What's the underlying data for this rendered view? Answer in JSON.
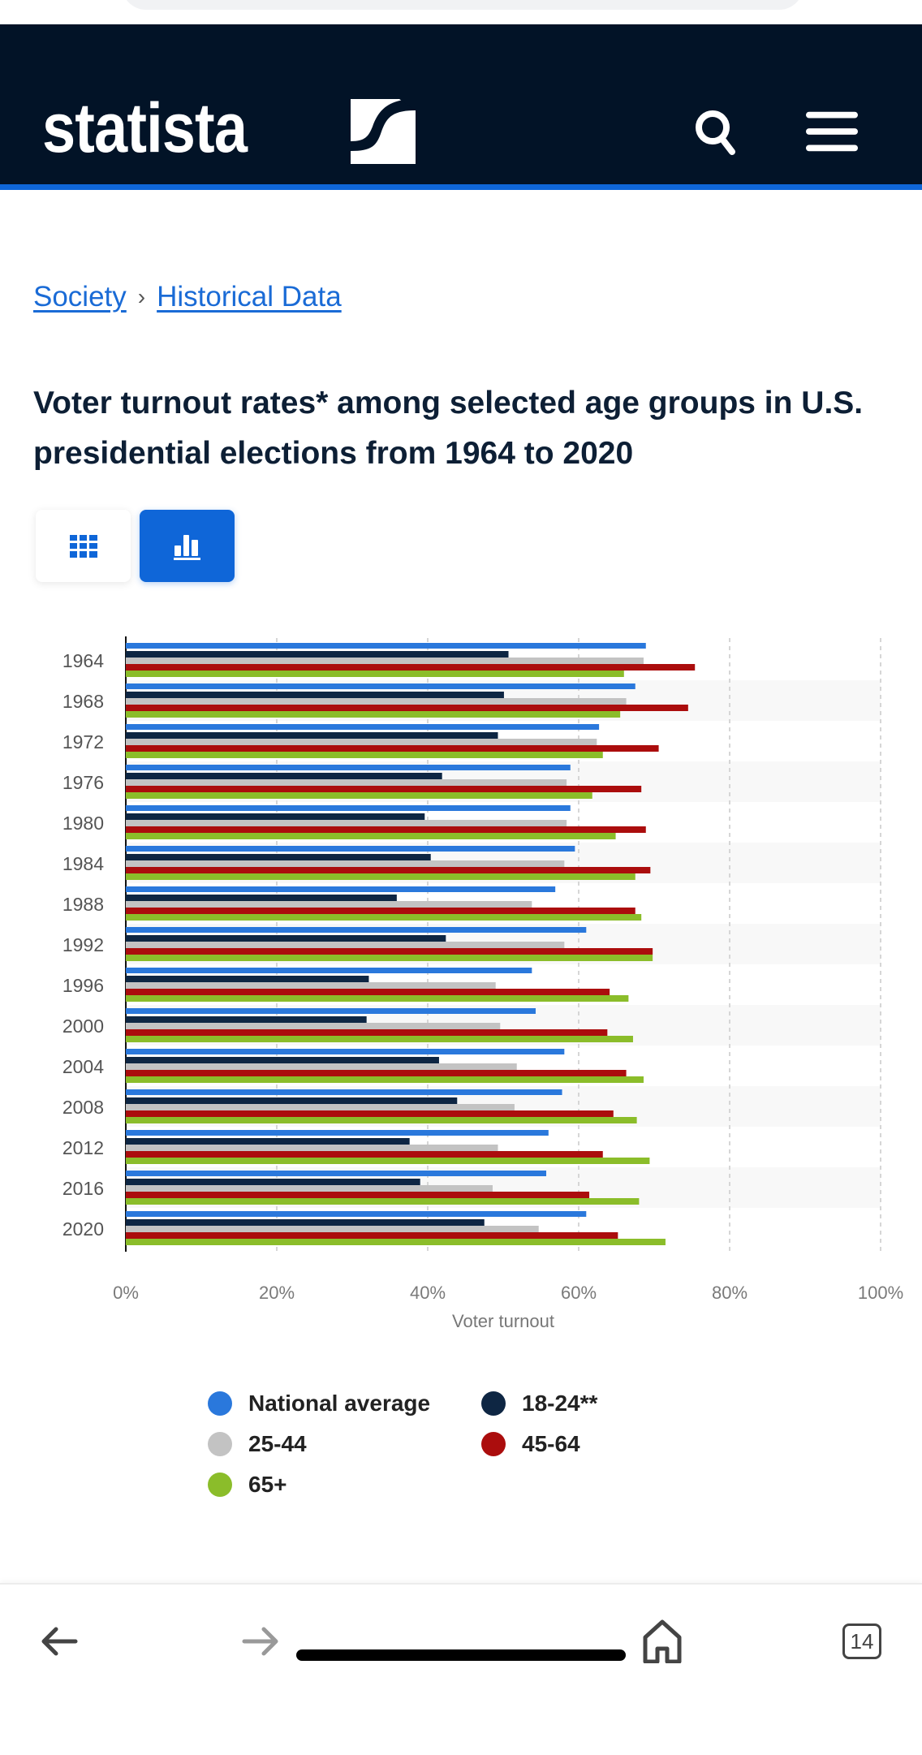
{
  "header": {
    "logo_text": "statista",
    "search_icon": "search-icon",
    "menu_icon": "hamburger-menu-icon",
    "background": "#021327",
    "accent": "#0f66d8"
  },
  "breadcrumb": {
    "items": [
      "Society",
      "Historical Data"
    ],
    "separator": "›"
  },
  "title": "Voter turnout rates* among selected age groups in U.S. presidential elections from 1964 to 2020",
  "view_toggle": {
    "table_icon": "table-grid-icon",
    "chart_icon": "bar-chart-icon",
    "active": "chart"
  },
  "chart_data": {
    "type": "bar",
    "orientation": "horizontal",
    "categories": [
      "1964",
      "1968",
      "1972",
      "1976",
      "1980",
      "1984",
      "1988",
      "1992",
      "1996",
      "2000",
      "2004",
      "2008",
      "2012",
      "2016",
      "2020"
    ],
    "series": [
      {
        "name": "National average",
        "color": "#2a78dc",
        "values": [
          68.9,
          67.5,
          62.7,
          58.9,
          58.9,
          59.5,
          56.9,
          61.0,
          53.8,
          54.3,
          58.1,
          57.8,
          56.0,
          55.7,
          61.0
        ]
      },
      {
        "name": "18-24**",
        "color": "#0e2643",
        "values": [
          50.7,
          50.1,
          49.3,
          41.9,
          39.6,
          40.4,
          35.9,
          42.4,
          32.2,
          31.9,
          41.5,
          43.9,
          37.6,
          39.0,
          47.5
        ]
      },
      {
        "name": "25-44",
        "color": "#c3c3c3",
        "values": [
          68.6,
          66.3,
          62.4,
          58.4,
          58.4,
          58.1,
          53.8,
          58.1,
          49.0,
          49.6,
          51.8,
          51.5,
          49.3,
          48.6,
          54.7
        ]
      },
      {
        "name": "45-64",
        "color": "#ab0d0d",
        "values": [
          75.4,
          74.5,
          70.6,
          68.3,
          68.9,
          69.5,
          67.5,
          69.8,
          64.1,
          63.8,
          66.3,
          64.6,
          63.2,
          61.4,
          65.2
        ]
      },
      {
        "name": "65+",
        "color": "#8bbd2a",
        "values": [
          66.0,
          65.5,
          63.2,
          61.8,
          64.9,
          67.5,
          68.3,
          69.8,
          66.6,
          67.2,
          68.6,
          67.7,
          69.4,
          68.0,
          71.5
        ]
      }
    ],
    "xlim": [
      0,
      100
    ],
    "xticks": [
      "0%",
      "20%",
      "40%",
      "60%",
      "80%",
      "100%"
    ],
    "xlabel": "Voter turnout",
    "ylabel": "",
    "grid": true,
    "legend_position": "bottom"
  },
  "bottom_nav": {
    "back_icon": "arrow-left-icon",
    "forward_icon": "arrow-right-icon",
    "home_icon": "home-icon",
    "tabs_count": "14"
  }
}
